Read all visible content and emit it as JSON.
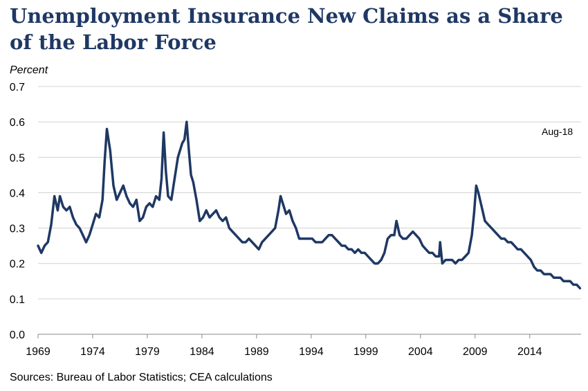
{
  "chart_data": {
    "type": "line",
    "title": "Unemployment Insurance New Claims as a Share of the Labor Force",
    "ylabel": "Percent",
    "xlabel": "",
    "ylim": [
      0,
      0.7
    ],
    "xlim": [
      1969,
      2018.7
    ],
    "y_ticks": [
      "0.0",
      "0.1",
      "0.2",
      "0.3",
      "0.4",
      "0.5",
      "0.6",
      "0.7"
    ],
    "x_ticks": [
      "1969",
      "1974",
      "1979",
      "1984",
      "1989",
      "1994",
      "1999",
      "2004",
      "2009",
      "2014"
    ],
    "grid": "horizontal",
    "annotation": "Aug-18",
    "line_color": "#1f3864",
    "series": [
      {
        "x": [
          1969.0,
          1969.3,
          1969.6,
          1969.9,
          1970.2,
          1970.5,
          1970.8,
          1971.0,
          1971.3,
          1971.6,
          1971.9,
          1972.2,
          1972.5,
          1972.8,
          1973.1,
          1973.4,
          1973.7,
          1974.0,
          1974.3,
          1974.6,
          1974.9,
          1975.1,
          1975.3,
          1975.6,
          1975.9,
          1976.2,
          1976.5,
          1976.8,
          1977.1,
          1977.4,
          1977.7,
          1978.0,
          1978.3,
          1978.6,
          1978.9,
          1979.2,
          1979.5,
          1979.8,
          1980.1,
          1980.3,
          1980.5,
          1980.7,
          1980.9,
          1981.2,
          1981.5,
          1981.8,
          1982.0,
          1982.2,
          1982.4,
          1982.6,
          1982.8,
          1983.0,
          1983.2,
          1983.5,
          1983.8,
          1984.1,
          1984.4,
          1984.7,
          1985.0,
          1985.3,
          1985.6,
          1985.9,
          1986.2,
          1986.5,
          1986.8,
          1987.1,
          1987.4,
          1987.7,
          1988.0,
          1988.3,
          1988.6,
          1988.9,
          1989.2,
          1989.5,
          1989.8,
          1990.1,
          1990.4,
          1990.7,
          1991.0,
          1991.2,
          1991.4,
          1991.7,
          1992.0,
          1992.3,
          1992.6,
          1992.9,
          1993.2,
          1993.5,
          1993.8,
          1994.1,
          1994.4,
          1994.7,
          1995.0,
          1995.3,
          1995.6,
          1995.9,
          1996.2,
          1996.5,
          1996.8,
          1997.1,
          1997.4,
          1997.7,
          1998.0,
          1998.3,
          1998.6,
          1998.9,
          1999.2,
          1999.5,
          1999.8,
          2000.1,
          2000.4,
          2000.7,
          2001.0,
          2001.3,
          2001.6,
          2001.8,
          2002.1,
          2002.4,
          2002.7,
          2003.0,
          2003.3,
          2003.6,
          2003.9,
          2004.2,
          2004.5,
          2004.8,
          2005.1,
          2005.4,
          2005.7,
          2005.8,
          2006.0,
          2006.3,
          2006.6,
          2006.9,
          2007.2,
          2007.5,
          2007.8,
          2008.1,
          2008.4,
          2008.7,
          2008.9,
          2009.1,
          2009.3,
          2009.6,
          2009.9,
          2010.2,
          2010.5,
          2010.8,
          2011.1,
          2011.4,
          2011.7,
          2012.0,
          2012.3,
          2012.6,
          2012.9,
          2013.2,
          2013.5,
          2013.8,
          2014.1,
          2014.4,
          2014.7,
          2015.0,
          2015.3,
          2015.6,
          2015.9,
          2016.2,
          2016.5,
          2016.8,
          2017.1,
          2017.4,
          2017.7,
          2018.0,
          2018.3,
          2018.6
        ],
        "values": [
          0.25,
          0.23,
          0.25,
          0.26,
          0.31,
          0.39,
          0.35,
          0.39,
          0.36,
          0.35,
          0.36,
          0.33,
          0.31,
          0.3,
          0.28,
          0.26,
          0.28,
          0.31,
          0.34,
          0.33,
          0.38,
          0.49,
          0.58,
          0.52,
          0.42,
          0.38,
          0.4,
          0.42,
          0.39,
          0.37,
          0.36,
          0.38,
          0.32,
          0.33,
          0.36,
          0.37,
          0.36,
          0.39,
          0.38,
          0.44,
          0.57,
          0.46,
          0.39,
          0.38,
          0.44,
          0.5,
          0.52,
          0.54,
          0.55,
          0.6,
          0.52,
          0.45,
          0.43,
          0.38,
          0.32,
          0.33,
          0.35,
          0.33,
          0.34,
          0.35,
          0.33,
          0.32,
          0.33,
          0.3,
          0.29,
          0.28,
          0.27,
          0.26,
          0.26,
          0.27,
          0.26,
          0.25,
          0.24,
          0.26,
          0.27,
          0.28,
          0.29,
          0.3,
          0.35,
          0.39,
          0.37,
          0.34,
          0.35,
          0.32,
          0.3,
          0.27,
          0.27,
          0.27,
          0.27,
          0.27,
          0.26,
          0.26,
          0.26,
          0.27,
          0.28,
          0.28,
          0.27,
          0.26,
          0.25,
          0.25,
          0.24,
          0.24,
          0.23,
          0.24,
          0.23,
          0.23,
          0.22,
          0.21,
          0.2,
          0.2,
          0.21,
          0.23,
          0.27,
          0.28,
          0.28,
          0.32,
          0.28,
          0.27,
          0.27,
          0.28,
          0.29,
          0.28,
          0.27,
          0.25,
          0.24,
          0.23,
          0.23,
          0.22,
          0.22,
          0.26,
          0.2,
          0.21,
          0.21,
          0.21,
          0.2,
          0.21,
          0.21,
          0.22,
          0.23,
          0.28,
          0.34,
          0.42,
          0.4,
          0.36,
          0.32,
          0.31,
          0.3,
          0.29,
          0.28,
          0.27,
          0.27,
          0.26,
          0.26,
          0.25,
          0.24,
          0.24,
          0.23,
          0.22,
          0.21,
          0.19,
          0.18,
          0.18,
          0.17,
          0.17,
          0.17,
          0.16,
          0.16,
          0.16,
          0.15,
          0.15,
          0.15,
          0.14,
          0.14,
          0.13
        ]
      }
    ]
  },
  "footer": {
    "source": "Sources: Bureau of Labor Statistics; CEA calculations"
  }
}
